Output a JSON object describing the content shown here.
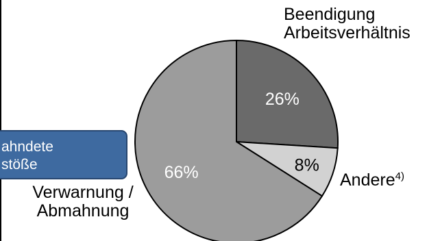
{
  "chart_data": {
    "type": "pie",
    "slices": [
      {
        "label": "Beendigung Arbeitsverhältnis",
        "value": 26,
        "value_label": "26%",
        "color": "#6a6a6a",
        "label_color": "#ffffff"
      },
      {
        "label": "Andere",
        "value": 8,
        "value_label": "8%",
        "color": "#d2d2d2",
        "label_color": "#000000"
      },
      {
        "label": "Verwarnung / Abmahnung",
        "value": 66,
        "value_label": "66%",
        "color": "#9c9c9c",
        "label_color": "#ffffff"
      }
    ],
    "start_angle_deg": 0,
    "direction": "clockwise"
  },
  "labels": {
    "top": [
      "Beendigung",
      "Arbeitsverhältnis"
    ],
    "right_text": "Andere",
    "right_sup": "4)",
    "left": [
      "Verwarnung /",
      "Abmahnung"
    ]
  },
  "callout": {
    "line1": "ahndete",
    "line2": "stöße"
  }
}
